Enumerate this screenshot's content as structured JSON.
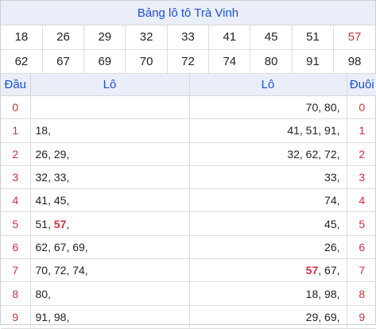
{
  "title": "Bảng lô tô Trà Vinh",
  "numbers_row1": [
    "18",
    "26",
    "29",
    "32",
    "33",
    "41",
    "45",
    "51",
    "57"
  ],
  "numbers_row2": [
    "62",
    "67",
    "69",
    "70",
    "72",
    "74",
    "80",
    "91",
    "98"
  ],
  "special_number": "57",
  "headers": {
    "dau": "Đầu",
    "lo_left": "Lô",
    "lo_right": "Lô",
    "duoi": "Đuôi"
  },
  "rows": [
    {
      "dau": "0",
      "left": [],
      "right": [
        "70",
        "80"
      ],
      "duoi": "0"
    },
    {
      "dau": "1",
      "left": [
        "18"
      ],
      "right": [
        "41",
        "51",
        "91"
      ],
      "duoi": "1"
    },
    {
      "dau": "2",
      "left": [
        "26",
        "29"
      ],
      "right": [
        "32",
        "62",
        "72"
      ],
      "duoi": "2"
    },
    {
      "dau": "3",
      "left": [
        "32",
        "33"
      ],
      "right": [
        "33"
      ],
      "duoi": "3"
    },
    {
      "dau": "4",
      "left": [
        "41",
        "45"
      ],
      "right": [
        "74"
      ],
      "duoi": "4"
    },
    {
      "dau": "5",
      "left": [
        "51",
        "57"
      ],
      "right": [
        "45"
      ],
      "duoi": "5"
    },
    {
      "dau": "6",
      "left": [
        "62",
        "67",
        "69"
      ],
      "right": [
        "26"
      ],
      "duoi": "6"
    },
    {
      "dau": "7",
      "left": [
        "70",
        "72",
        "74"
      ],
      "right": [
        "57",
        "67"
      ],
      "duoi": "7"
    },
    {
      "dau": "8",
      "left": [
        "80"
      ],
      "right": [
        "18",
        "98"
      ],
      "duoi": "8"
    },
    {
      "dau": "9",
      "left": [
        "91",
        "98"
      ],
      "right": [
        "29",
        "69"
      ],
      "duoi": "9"
    }
  ],
  "colors": {
    "title": "#1a4fd6",
    "accent_red": "#d0303f",
    "header_bg": "#e9eef9"
  }
}
